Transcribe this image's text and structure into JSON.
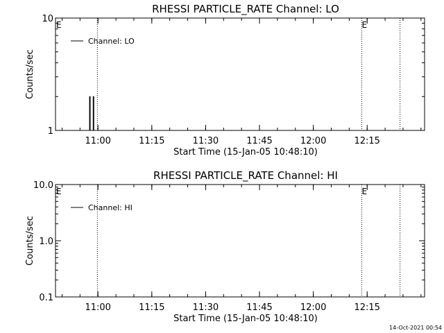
{
  "footer_timestamp": "14-Oct-2021 00:54",
  "chart_data": [
    {
      "type": "line",
      "title": "RHESSI PARTICLE_RATE Channel: LO",
      "xlabel": "Start Time (15-Jan-05 10:48:10)",
      "ylabel": "Counts/sec",
      "yscale": "log",
      "ylim": [
        1,
        10
      ],
      "xlim": [
        "10:48:10",
        "12:31:00"
      ],
      "x_ticks": [
        "11:00",
        "11:15",
        "11:30",
        "11:45",
        "12:00",
        "12:15"
      ],
      "y_ticks": [
        "1",
        "10"
      ],
      "legend": {
        "position": "top-left",
        "entries": [
          "Channel: LO"
        ]
      },
      "series": [
        {
          "name": "Channel: LO",
          "points": [
            {
              "x": "10:57:40",
              "y": 1
            },
            {
              "x": "10:57:40",
              "y": 2
            },
            {
              "x": "10:57:50",
              "y": 2
            },
            {
              "x": "10:57:50",
              "y": 1
            },
            {
              "x": "10:58:40",
              "y": 1
            },
            {
              "x": "10:58:40",
              "y": 2
            },
            {
              "x": "10:58:50",
              "y": 2
            },
            {
              "x": "10:58:50",
              "y": 1
            }
          ]
        }
      ],
      "vlines": [
        {
          "x": "10:59:50",
          "label": ""
        },
        {
          "x": "12:13:30",
          "label": "E"
        },
        {
          "x": "12:24:10",
          "label": ""
        }
      ],
      "edge_labels": [
        "E"
      ]
    },
    {
      "type": "line",
      "title": "RHESSI PARTICLE_RATE Channel: HI",
      "xlabel": "Start Time (15-Jan-05 10:48:10)",
      "ylabel": "Counts/sec",
      "yscale": "log",
      "ylim": [
        0.1,
        10
      ],
      "xlim": [
        "10:48:10",
        "12:31:00"
      ],
      "x_ticks": [
        "11:00",
        "11:15",
        "11:30",
        "11:45",
        "12:00",
        "12:15"
      ],
      "y_ticks": [
        "0.1",
        "1.0",
        "10.0"
      ],
      "legend": {
        "position": "top-left",
        "entries": [
          "Channel: HI"
        ]
      },
      "series": [
        {
          "name": "Channel: HI",
          "points": []
        }
      ],
      "vlines": [
        {
          "x": "10:59:50",
          "label": ""
        },
        {
          "x": "12:13:30",
          "label": "E"
        },
        {
          "x": "12:24:10",
          "label": ""
        }
      ],
      "edge_labels": [
        "E"
      ]
    }
  ]
}
